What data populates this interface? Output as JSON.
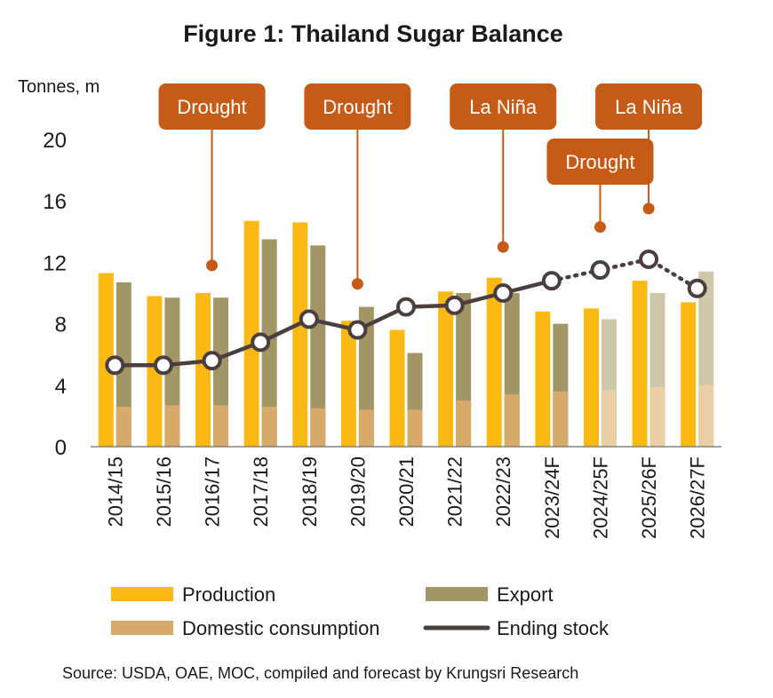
{
  "chart_data": {
    "type": "bar",
    "title": "Figure 1: Thailand Sugar Balance",
    "ylabel": "Tonnes, m",
    "ylim": [
      0,
      20
    ],
    "yticks": [
      0,
      4,
      8,
      12,
      16,
      20
    ],
    "categories": [
      "2014/15",
      "2015/16",
      "2016/17",
      "2017/18",
      "2018/19",
      "2019/20",
      "2020/21",
      "2021/22",
      "2022/23",
      "2023/24F",
      "2024/25F",
      "2025/26F",
      "2026/27F"
    ],
    "forecast_start_index": 10,
    "series": [
      {
        "name": "Production",
        "kind": "bar",
        "color": "#FDB913",
        "forecast_color": "#FDB913",
        "values": [
          11.3,
          9.8,
          10.0,
          14.7,
          14.6,
          8.2,
          7.6,
          10.1,
          11.0,
          8.8,
          9.0,
          10.8,
          9.4
        ]
      },
      {
        "name": "Export",
        "kind": "bar",
        "color": "#A29666",
        "forecast_color": "#CFC8A8",
        "values": [
          10.7,
          9.7,
          9.7,
          13.5,
          13.1,
          9.1,
          6.1,
          10.0,
          10.0,
          8.0,
          8.3,
          10.0,
          11.4
        ]
      },
      {
        "name": "Domestic consumption",
        "kind": "bar-overlay",
        "color": "#D7A96B",
        "forecast_color": "#EACFA4",
        "values": [
          2.6,
          2.7,
          2.7,
          2.6,
          2.5,
          2.4,
          2.4,
          3.0,
          3.4,
          3.6,
          3.7,
          3.9,
          4.0
        ]
      },
      {
        "name": "Ending stock",
        "kind": "line",
        "color": "#4A3F3E",
        "values": [
          5.3,
          5.3,
          5.6,
          6.8,
          8.3,
          7.6,
          9.1,
          9.2,
          10.0,
          10.8,
          11.5,
          12.2,
          10.3
        ]
      }
    ],
    "annotations": [
      {
        "label": "Drought",
        "index": 2,
        "y": 11.8,
        "row": 1
      },
      {
        "label": "Drought",
        "index": 5,
        "y": 10.6,
        "row": 1
      },
      {
        "label": "La Niña",
        "index": 8,
        "y": 13.0,
        "row": 1
      },
      {
        "label": "Drought",
        "index": 10,
        "y": 14.3,
        "row": 2
      },
      {
        "label": "La Niña",
        "index": 11,
        "y": 15.5,
        "row": 1
      }
    ],
    "annotation_color": "#C65A17",
    "legend": [
      "Production",
      "Export",
      "Domestic consumption",
      "Ending stock"
    ],
    "legend_position": "bottom",
    "source": "Source:  USDA, OAE, MOC, compiled and forecast by Krungsri Research"
  }
}
